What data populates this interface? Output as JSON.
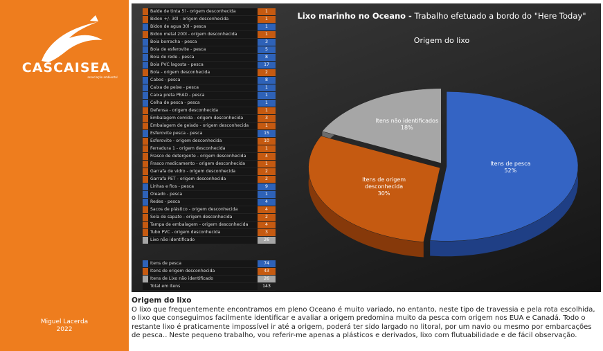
{
  "sidebar": {
    "logo": "CASCAISEA",
    "logo_sub": "associação ambiental",
    "author": "Miguel Lacerda",
    "year": "2022"
  },
  "table": {
    "rows": [
      [
        "Balde de tinta 5l - origem desconhecida",
        1,
        "#c55a11"
      ],
      [
        "Bidon +/- 30l - origem desconhecida",
        1,
        "#c55a11"
      ],
      [
        "Bidon de agua 30l - pesca",
        1,
        "#2e62b8"
      ],
      [
        "Bidon metal 200l - origem desconhecida",
        1,
        "#c55a11"
      ],
      [
        "Boia borracha - pesca",
        3,
        "#2e62b8"
      ],
      [
        "Boia de esferovite - pesca",
        5,
        "#2e62b8"
      ],
      [
        "Boia de rede - pesca",
        8,
        "#2e62b8"
      ],
      [
        "Boia PVC lagosta - pesca",
        17,
        "#2e62b8"
      ],
      [
        "Bola - origem desconhecida",
        2,
        "#c55a11"
      ],
      [
        "Cabos - pesca",
        8,
        "#2e62b8"
      ],
      [
        "Caixa de peixe - pesca",
        1,
        "#2e62b8"
      ],
      [
        "Caixa preta PEAD - pesca",
        1,
        "#2e62b8"
      ],
      [
        "Celha de pesca - pesca",
        1,
        "#2e62b8"
      ],
      [
        "Defensa - origem desconhecida",
        1,
        "#c55a11"
      ],
      [
        "Embalagem comida - origem desconhecida",
        3,
        "#c55a11"
      ],
      [
        "Embalagem de gelado - origem desconhecida",
        1,
        "#c55a11"
      ],
      [
        "Esferovite pesca - pesca",
        15,
        "#2e62b8"
      ],
      [
        "Esferovite - origem desconhecida",
        10,
        "#c55a11"
      ],
      [
        "Ferradura 1 - origem desconhecida",
        1,
        "#c55a11"
      ],
      [
        "Frasco de detergente - origem desconhecida",
        4,
        "#c55a11"
      ],
      [
        "Frasco medicamento - origem desconhecida",
        1,
        "#c55a11"
      ],
      [
        "Garrafa de vidro - origem desconhecida",
        2,
        "#c55a11"
      ],
      [
        "Garrafa PET - origem desconhecida",
        2,
        "#c55a11"
      ],
      [
        "Linhas e fios - pesca",
        9,
        "#2e62b8"
      ],
      [
        "Oleado - pesca",
        1,
        "#2e62b8"
      ],
      [
        "Redes - pesca",
        4,
        "#2e62b8"
      ],
      [
        "Sacos de plástico - origem desconhecida",
        4,
        "#c55a11"
      ],
      [
        "Sola de sapato - origem desconhecida",
        2,
        "#c55a11"
      ],
      [
        "Tampa de embalagem - origem desconhecida",
        4,
        "#c55a11"
      ],
      [
        "Tubo PVC - origem desconhecida",
        3,
        "#c55a11"
      ],
      [
        "Lixo não identificado",
        26,
        "#a6a6a6"
      ]
    ],
    "summary": [
      [
        "Itens de pesca",
        74,
        "#2e62b8"
      ],
      [
        "Itens de origem desconhecida",
        43,
        "#c55a11"
      ],
      [
        "Itens de Lixo não identificado",
        26,
        "#a6a6a6"
      ],
      [
        "Total em itens",
        143,
        null
      ]
    ]
  },
  "chart_data": {
    "type": "pie",
    "title": "Lixo marinho no Oceano -",
    "title_rest": " Trabalho efetuado a bordo do \"Here Today\"",
    "subtitle": "Origem do lixo",
    "categories": [
      "Itens de pesca",
      "Itens de origem desconhecida",
      "Itens não identificados"
    ],
    "values": [
      52,
      30,
      18
    ],
    "value_labels": [
      "52%",
      "30%",
      "18%"
    ],
    "colors": [
      "#3464c4",
      "#c55a11",
      "#a6a6a6"
    ],
    "side_colors": [
      "#1f3f85",
      "#86390a",
      "#6b6b6b"
    ]
  },
  "text": {
    "heading": "Origem do lixo",
    "paragraph": "O lixo que frequentemente encontramos em pleno Oceano é muito variado, no entanto, neste tipo de travessia e pela rota escolhida, o lixo que conseguimos facilmente identificar e avaliar a origem predomina muito da pesca com origem nos EUA e Canadá. Todo o restante lixo é praticamente impossível ir até a origem, poderá ter sido largado no litoral, por um navio ou mesmo por embarcações de pesca.. Neste pequeno trabalho, vou referir-me apenas a plásticos e derivados, lixo com flutuabilidade e de fácil observação."
  }
}
